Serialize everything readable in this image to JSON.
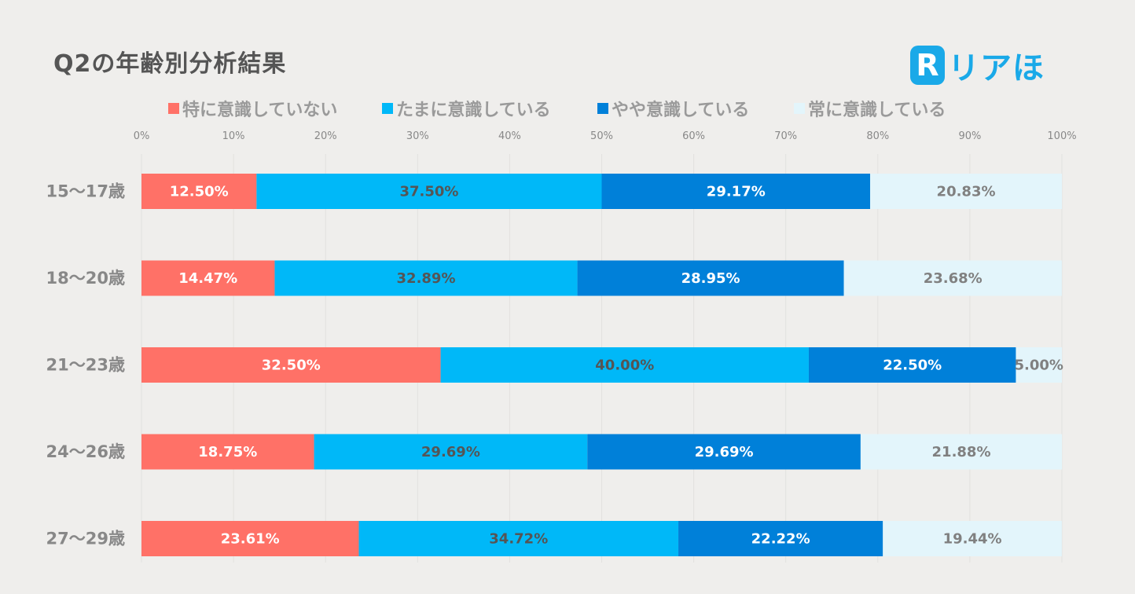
{
  "title": "Q2の年齢別分析結果",
  "logo": {
    "text": "リアほ",
    "mark_letter": "R",
    "color": "#1aa9e8"
  },
  "chart_data": {
    "type": "bar",
    "orientation": "horizontal",
    "stacked": true,
    "title": "Q2の年齢別分析結果",
    "categories": [
      "15〜17歳",
      "18〜20歳",
      "21〜23歳",
      "24〜26歳",
      "27〜29歳"
    ],
    "xlim": [
      0,
      100
    ],
    "xticks": [
      "0%",
      "10%",
      "20%",
      "30%",
      "40%",
      "50%",
      "60%",
      "70%",
      "80%",
      "90%",
      "100%"
    ],
    "grid": true,
    "legend_position": "top",
    "series": [
      {
        "name": "特に意識していない",
        "color": "#ff7167",
        "label_color": "#ffffff",
        "values": [
          12.5,
          14.47,
          32.5,
          18.75,
          23.61
        ],
        "labels": [
          "12.50%",
          "14.47%",
          "32.50%",
          "18.75%",
          "23.61%"
        ]
      },
      {
        "name": "たまに意識している",
        "color": "#00b8f8",
        "label_color": "#555555",
        "values": [
          37.5,
          32.89,
          40.0,
          29.69,
          34.72
        ],
        "labels": [
          "37.50%",
          "32.89%",
          "40.00%",
          "29.69%",
          "34.72%"
        ]
      },
      {
        "name": "やや意識している",
        "color": "#0080d9",
        "label_color": "#ffffff",
        "values": [
          29.17,
          28.95,
          22.5,
          29.69,
          22.22
        ],
        "labels": [
          "29.17%",
          "28.95%",
          "22.50%",
          "29.69%",
          "22.22%"
        ]
      },
      {
        "name": "常に意識している",
        "color": "#e3f5fb",
        "label_color": "#808080",
        "values": [
          20.83,
          23.68,
          5.0,
          21.88,
          19.44
        ],
        "labels": [
          "20.83%",
          "23.68%",
          "5.00%",
          "21.88%",
          "19.44%"
        ]
      }
    ]
  }
}
